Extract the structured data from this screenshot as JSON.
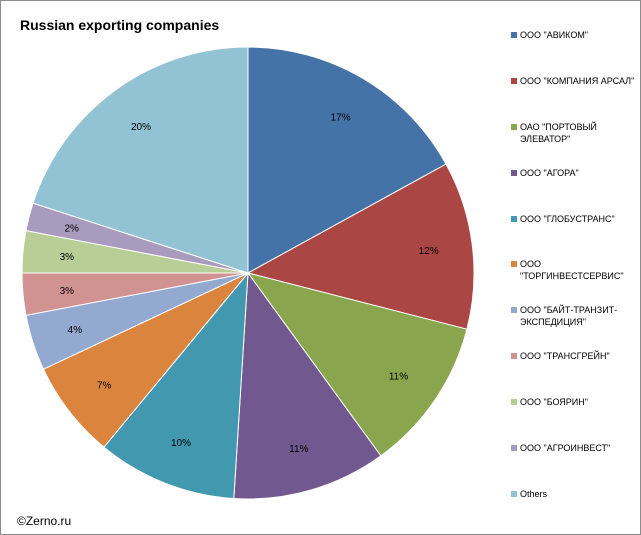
{
  "chart_data": {
    "type": "pie",
    "title": "Russian exporting companies",
    "slices": [
      {
        "label": "ООО \"АВИКОМ\"",
        "value": 17,
        "value_label": "17%",
        "color": "#4572a7"
      },
      {
        "label": "ООО \"КОМПАНИЯ АРСАЛ\"",
        "value": 12,
        "value_label": "12%",
        "color": "#aa4643"
      },
      {
        "label": "ОАО \"ПОРТОВЫЙ ЭЛЕВАТОР\"",
        "value": 11,
        "value_label": "11%",
        "color": "#89a54e"
      },
      {
        "label": "ООО \"АГОРА\"",
        "value": 11,
        "value_label": "11%",
        "color": "#71588f"
      },
      {
        "label": "ООО \"ГЛОБУСТРАНС\"",
        "value": 10,
        "value_label": "10%",
        "color": "#4198af"
      },
      {
        "label": "ООО \"ТОРГИНВЕСТСЕРВИС\"",
        "value": 7,
        "value_label": "7%",
        "color": "#db843d"
      },
      {
        "label": "ООО \"БАЙТ-ТРАНЗИТ-ЭКСПЕДИЦИЯ\"",
        "value": 4,
        "value_label": "4%",
        "color": "#93a9cf"
      },
      {
        "label": "ООО \"ТРАНСГРЕЙН\"",
        "value": 3,
        "value_label": "3%",
        "color": "#d19392"
      },
      {
        "label": "ООО \"БОЯРИН\"",
        "value": 3,
        "value_label": "3%",
        "color": "#b9cd96"
      },
      {
        "label": "ООО \"АГРОИНВЕСТ\"",
        "value": 2,
        "value_label": "2%",
        "color": "#a99bbd"
      },
      {
        "label": "Others",
        "value": 20,
        "value_label": "20%",
        "color": "#92c3d4"
      }
    ],
    "legend_position": "right"
  },
  "watermark": "©Zerno.ru"
}
